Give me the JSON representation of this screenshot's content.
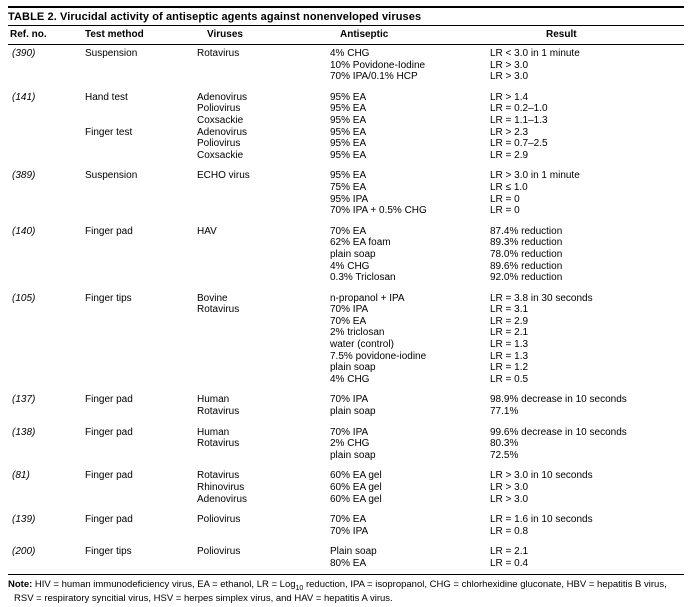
{
  "table": {
    "title": "TABLE 2. Virucidal activity of antiseptic agents against nonenveloped viruses",
    "columns": [
      "Ref. no.",
      "Test method",
      "Viruses",
      "Antiseptic",
      "Result"
    ],
    "groups": [
      {
        "ref": "(390)",
        "rows": [
          {
            "method": "Suspension",
            "virus": "Rotavirus",
            "antiseptic": "4% CHG",
            "result": "LR < 3.0 in 1 minute"
          },
          {
            "antiseptic": "10% Povidone-Iodine",
            "result": "LR > 3.0"
          },
          {
            "antiseptic": "70% IPA/0.1% HCP",
            "result": "LR > 3.0"
          }
        ]
      },
      {
        "ref": "(141)",
        "rows": [
          {
            "method": "Hand test",
            "virus": "Adenovirus",
            "antiseptic": "95% EA",
            "result": "LR > 1.4"
          },
          {
            "virus": "Poliovirus",
            "antiseptic": "95% EA",
            "result": "LR = 0.2–1.0"
          },
          {
            "virus": "Coxsackie",
            "antiseptic": "95% EA",
            "result": "LR = 1.1–1.3"
          },
          {
            "method": "Finger test",
            "virus": "Adenovirus",
            "antiseptic": "95% EA",
            "result": "LR > 2.3"
          },
          {
            "virus": "Poliovirus",
            "antiseptic": "95% EA",
            "result": "LR = 0.7–2.5"
          },
          {
            "virus": "Coxsackie",
            "antiseptic": "95% EA",
            "result": "LR = 2.9"
          }
        ]
      },
      {
        "ref": "(389)",
        "rows": [
          {
            "method": "Suspension",
            "virus": "ECHO virus",
            "antiseptic": "95% EA",
            "result": "LR > 3.0 in 1 minute"
          },
          {
            "antiseptic": "75% EA",
            "result": "LR ≤ 1.0"
          },
          {
            "antiseptic": "95% IPA",
            "result": "LR = 0"
          },
          {
            "antiseptic": "70% IPA + 0.5% CHG",
            "result": "LR = 0"
          }
        ]
      },
      {
        "ref": "(140)",
        "rows": [
          {
            "method": "Finger pad",
            "virus": "HAV",
            "antiseptic": "70% EA",
            "result": "87.4% reduction"
          },
          {
            "antiseptic": "62% EA foam",
            "result": "89.3% reduction"
          },
          {
            "antiseptic": "plain soap",
            "result": "78.0% reduction"
          },
          {
            "antiseptic": "4% CHG",
            "result": "89.6% reduction"
          },
          {
            "antiseptic": "0.3% Triclosan",
            "result": "92.0% reduction"
          }
        ]
      },
      {
        "ref": "(105)",
        "rows": [
          {
            "method": "Finger tips",
            "virus": "Bovine",
            "antiseptic": "n-propanol + IPA",
            "result": "LR = 3.8 in 30 seconds"
          },
          {
            "virus": "Rotavirus",
            "antiseptic": "70% IPA",
            "result": "LR = 3.1"
          },
          {
            "antiseptic": "70% EA",
            "result": "LR = 2.9"
          },
          {
            "antiseptic": "2% triclosan",
            "result": "LR = 2.1"
          },
          {
            "antiseptic": "water (control)",
            "result": "LR = 1.3"
          },
          {
            "antiseptic": "7.5% povidone-iodine",
            "result": "LR = 1.3"
          },
          {
            "antiseptic": "plain soap",
            "result": "LR = 1.2"
          },
          {
            "antiseptic": "4% CHG",
            "result": "LR = 0.5"
          }
        ]
      },
      {
        "ref": "(137)",
        "rows": [
          {
            "method": "Finger pad",
            "virus": "Human",
            "antiseptic": "70% IPA",
            "result": "98.9% decrease in 10 seconds"
          },
          {
            "virus": "Rotavirus",
            "antiseptic": "plain soap",
            "result": "77.1%"
          }
        ]
      },
      {
        "ref": "(138)",
        "rows": [
          {
            "method": "Finger pad",
            "virus": "Human",
            "antiseptic": "70% IPA",
            "result": "99.6% decrease in 10 seconds"
          },
          {
            "virus": "Rotavirus",
            "antiseptic": "2% CHG",
            "result": "80.3%"
          },
          {
            "antiseptic": "plain soap",
            "result": "72.5%"
          }
        ]
      },
      {
        "ref": "(81)",
        "rows": [
          {
            "method": "Finger pad",
            "virus": "Rotavirus",
            "antiseptic": "60% EA gel",
            "result": "LR > 3.0 in 10 seconds"
          },
          {
            "virus": "Rhinovirus",
            "antiseptic": "60% EA gel",
            "result": "LR > 3.0"
          },
          {
            "virus": "Adenovirus",
            "antiseptic": "60% EA gel",
            "result": "LR > 3.0"
          }
        ]
      },
      {
        "ref": "(139)",
        "rows": [
          {
            "method": "Finger pad",
            "virus": "Poliovirus",
            "antiseptic": "70% EA",
            "result": "LR = 1.6 in 10 seconds"
          },
          {
            "antiseptic": "70% IPA",
            "result": "LR = 0.8"
          }
        ]
      },
      {
        "ref": "(200)",
        "rows": [
          {
            "method": "Finger tips",
            "virus": "Poliovirus",
            "antiseptic": "Plain soap",
            "result": "LR = 2.1"
          },
          {
            "antiseptic": "80% EA",
            "result": "LR = 0.4"
          }
        ]
      }
    ],
    "note": {
      "label": "Note:",
      "part1": " HIV = human immunodeficiency virus, EA = ethanol, LR = Log",
      "sub": "10",
      "part2": " reduction, IPA = isopropanol, CHG = chlorhexidine gluconate, HBV = hepatitis B virus, RSV = respiratory syncitial virus, HSV = herpes simplex virus, and HAV = hepatitis A virus."
    }
  }
}
